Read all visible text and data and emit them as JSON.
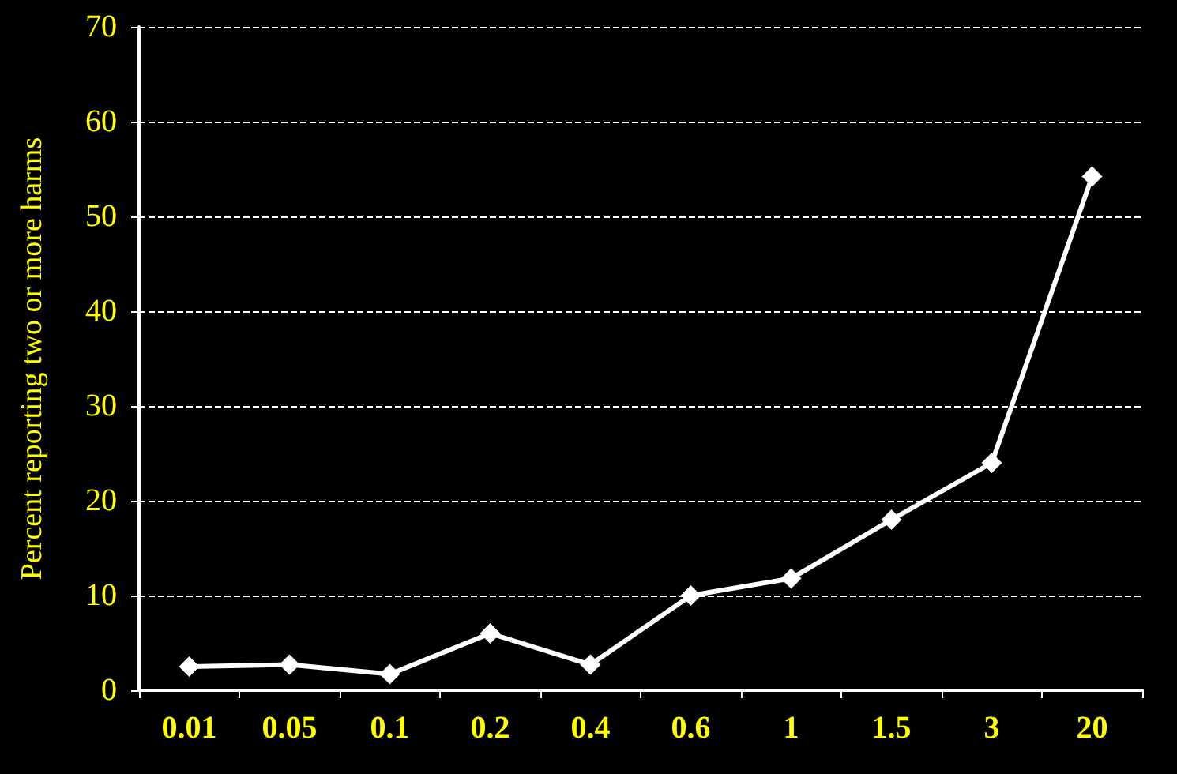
{
  "chart_data": {
    "type": "line",
    "ylabel": "Percent reporting two or more harms",
    "categories": [
      "0.01",
      "0.05",
      "0.1",
      "0.2",
      "0.4",
      "0.6",
      "1",
      "1.5",
      "3",
      "20"
    ],
    "series": [
      {
        "color": "#ffffff",
        "values": [
          2.5,
          2.7,
          1.7,
          6,
          2.7,
          10,
          11.8,
          18,
          24,
          54.2
        ]
      }
    ],
    "ylim": [
      0,
      70
    ],
    "yticks": [
      0,
      10,
      20,
      30,
      40,
      50,
      60,
      70
    ],
    "grid": "y",
    "marker": "diamond",
    "line_style": "solid"
  }
}
